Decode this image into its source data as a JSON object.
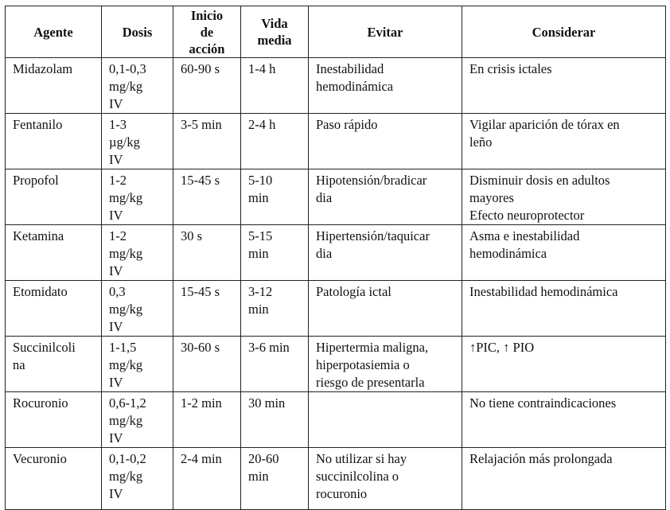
{
  "table": {
    "headers": [
      "Agente",
      "Dosis",
      "Inicio\nde\nacción",
      "Vida\nmedia",
      "Evitar",
      "Considerar"
    ],
    "rows": [
      [
        "Midazolam",
        "0,1-0,3\nmg/kg\nIV",
        "60-90 s",
        "1-4 h",
        "Inestabilidad\nhemodinámica",
        "En crisis ictales"
      ],
      [
        "Fentanilo",
        "1-3\nµg/kg\nIV",
        "3-5 min",
        "2-4 h",
        "Paso rápido",
        "Vigilar aparición de tórax en\nleño"
      ],
      [
        "Propofol",
        "1-2\nmg/kg\nIV",
        "15-45 s",
        "5-10\nmin",
        "Hipotensión/bradicar\ndia",
        "Disminuir dosis en adultos\nmayores\nEfecto neuroprotector"
      ],
      [
        "Ketamina",
        "1-2\nmg/kg\nIV",
        "30 s",
        "5-15\nmin",
        "Hipertensión/taquicar\ndia",
        "Asma e inestabilidad\nhemodinámica"
      ],
      [
        "Etomidato",
        "0,3\nmg/kg\nIV",
        "15-45 s",
        "3-12\nmin",
        "Patología ictal",
        "Inestabilidad hemodinámica"
      ],
      [
        "Succinilcoli\nna",
        "1-1,5\nmg/kg\nIV",
        "30-60 s",
        "3-6 min",
        "Hipertermia maligna,\nhiperpotasiemia o\nriesgo de presentarla",
        "↑PIC, ↑ PIO"
      ],
      [
        "Rocuronio",
        "0,6-1,2\nmg/kg\nIV",
        "1-2 min",
        "30 min",
        "",
        "No tiene contraindicaciones"
      ],
      [
        "Vecuronio",
        "0,1-0,2\nmg/kg\nIV",
        "2-4 min",
        "20-60\nmin",
        "No utilizar si hay\nsuccinilcolina o\nrocuronio",
        "Relajación más prolongada"
      ]
    ]
  }
}
